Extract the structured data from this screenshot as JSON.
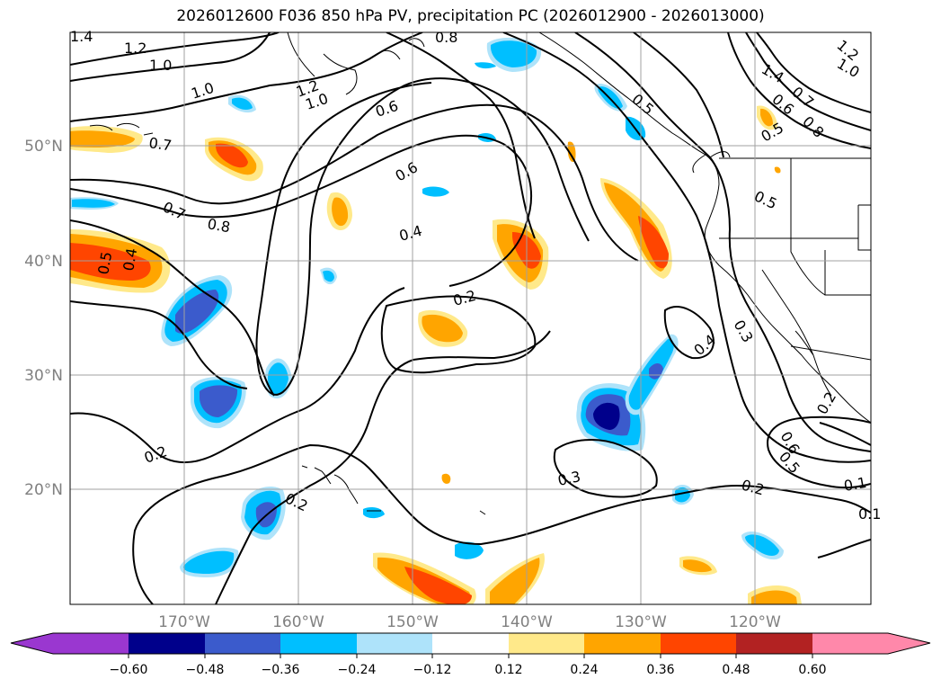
{
  "title": "2026012600 F036 850 hPa PV, precipitation PC (2026012900 - 2026013000)",
  "colors": {
    "grid": "#a0a0a0",
    "contour": "#000000",
    "coast": "#000000",
    "levels": [
      "#9a37d0",
      "#00008b",
      "#3b5bcc",
      "#00bfff",
      "#aee3fa",
      "#ffffff",
      "#ffe98a",
      "#ffa500",
      "#ff4500",
      "#b22222",
      "#ff88aa"
    ]
  },
  "map": {
    "lon_ticks": [
      "170°W",
      "160°W",
      "150°W",
      "140°W",
      "130°W",
      "120°W"
    ],
    "lat_ticks": [
      "50°N",
      "40°N",
      "30°N",
      "20°N"
    ]
  },
  "colorbar": {
    "ticks": [
      "−0.60",
      "−0.48",
      "−0.36",
      "−0.24",
      "−0.12",
      "0.12",
      "0.24",
      "0.36",
      "0.48",
      "0.60"
    ]
  },
  "contour_labels": [
    "1.4",
    "1.2",
    "1.0",
    "1.0",
    "1.2",
    "1.0",
    "0.8",
    "0.6",
    "0.7",
    "0.7",
    "0.8",
    "0.6",
    "0.4",
    "0.5",
    "0.4",
    "0.2",
    "0.2",
    "0.2",
    "0.3",
    "0.2",
    "0.3",
    "0.4",
    "0.5",
    "0.5",
    "0.6",
    "0.7",
    "0.8",
    "0.5",
    "1.4",
    "1.2",
    "1.0",
    "0.6",
    "0.5",
    "0.2",
    "0.1",
    "0.1"
  ]
}
